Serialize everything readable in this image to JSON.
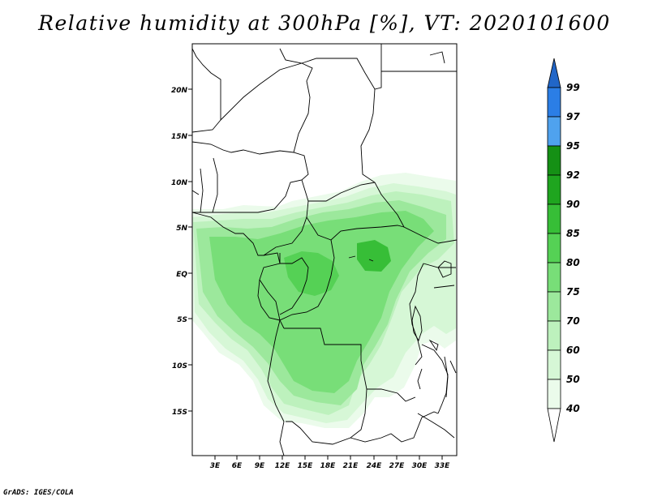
{
  "title": "Relative humidity at 300hPa [%], VT: 2020101600",
  "credit": "GrADS: IGES/COLA",
  "map": {
    "lat_labels": [
      "20N",
      "15N",
      "10N",
      "5N",
      "EQ",
      "5S",
      "10S",
      "15S"
    ],
    "lon_labels": [
      "3E",
      "6E",
      "9E",
      "12E",
      "15E",
      "18E",
      "21E",
      "24E",
      "27E",
      "30E",
      "33E"
    ]
  },
  "colorbar": {
    "levels": [
      "99",
      "97",
      "95",
      "92",
      "90",
      "85",
      "80",
      "75",
      "70",
      "60",
      "50",
      "40"
    ],
    "colors": {
      "top_arrow": "#2166c8",
      "97-99": "#2b7ee6",
      "95-97": "#4fa2ee",
      "92-95": "#159015",
      "90-92": "#1fa51f",
      "85-90": "#37be37",
      "80-85": "#55d155",
      "75-80": "#78de78",
      "70-75": "#9ce89c",
      "60-70": "#bdf1bd",
      "50-60": "#d6f7d6",
      "40-50": "#ebfbeb",
      "bottom_arrow": "#ffffff"
    }
  }
}
